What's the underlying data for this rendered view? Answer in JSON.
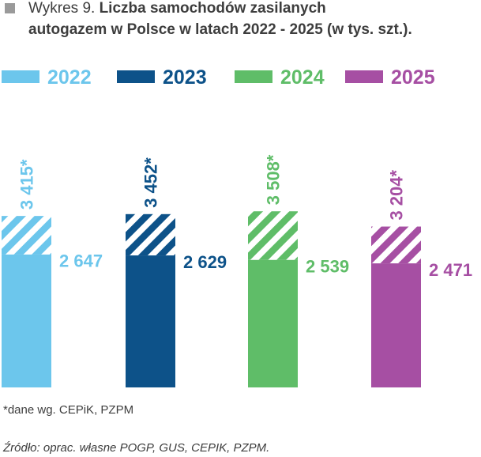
{
  "title": {
    "prefix": "Wykres 9.",
    "bold_line_1": "Liczba samochodów zasilanych",
    "bold_line_2": "autogazem w Polsce w latach 2022 - 2025 (w tys. szt.)."
  },
  "note": "*dane wg. CEPiK, PZPM",
  "source": "Źródło: oprac. własne POGP, GUS, CEPIK, PZPM.",
  "chart_data": {
    "type": "bar",
    "categories": [
      "2022",
      "2023",
      "2024",
      "2025"
    ],
    "series": [
      {
        "values": [
          2647,
          2629,
          2539,
          2471
        ],
        "labels": [
          "2 647",
          "2 629",
          "2 539",
          "2 471"
        ]
      },
      {
        "values": [
          3415,
          3452,
          3508,
          3204
        ],
        "labels": [
          "3 415*",
          "3 452*",
          "3 508*",
          "3 204*"
        ],
        "pattern": "hatched"
      }
    ],
    "colors": [
      "#6cc6ec",
      "#0d5289",
      "#5fbd68",
      "#a64fa3"
    ],
    "legend": [
      "2022",
      "2023",
      "2024",
      "2025"
    ],
    "legend_position": "top",
    "axes_visible": false
  }
}
